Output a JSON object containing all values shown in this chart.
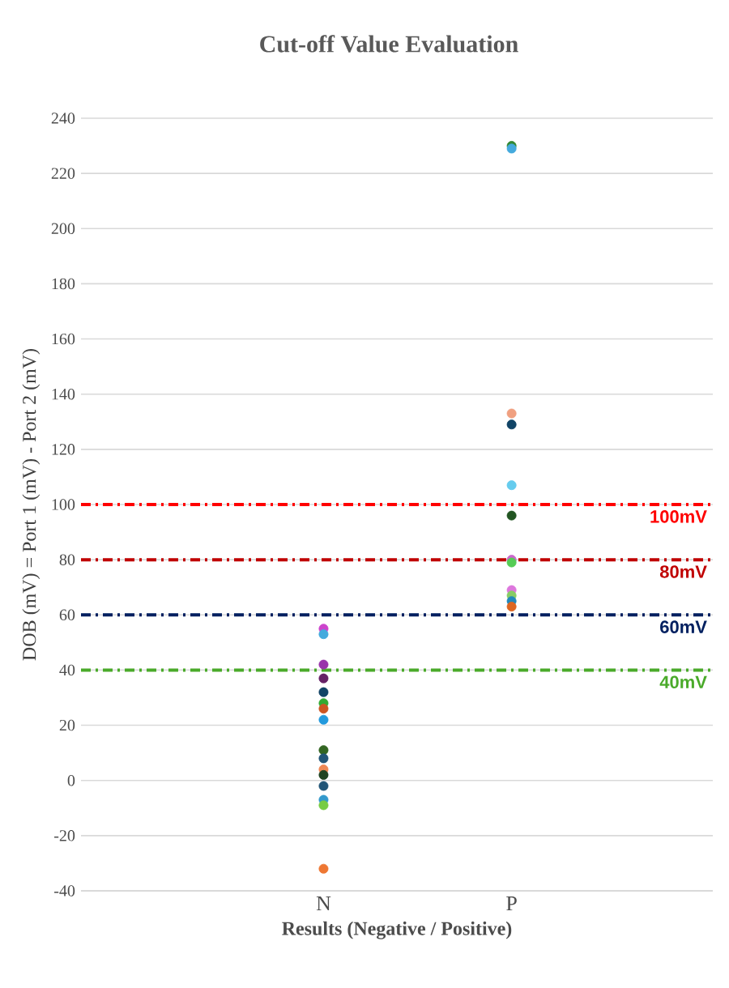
{
  "chart_data": {
    "type": "scatter",
    "title": "Cut-off Value Evaluation",
    "xlabel": "Results (Negative / Positive)",
    "ylabel": "DOB (mV) = Port 1 (mV) - Port 2 (mV)",
    "categories": [
      "N",
      "P"
    ],
    "series": [
      {
        "x": [
          "N",
          "N",
          "N",
          "N",
          "N",
          "N",
          "N",
          "N",
          "N",
          "N",
          "N",
          "N",
          "N",
          "N",
          "N",
          "N",
          "P",
          "P",
          "P",
          "P",
          "P",
          "P",
          "P",
          "P",
          "P",
          "P",
          "P",
          "P"
        ],
        "values": [
          55,
          53,
          42,
          37,
          32,
          28,
          26,
          22,
          11,
          8,
          4,
          2,
          -2,
          -7,
          -9,
          -32,
          230,
          229,
          133,
          129,
          107,
          96,
          80,
          79,
          69,
          67,
          65,
          63
        ],
        "colors": [
          "#cc44cc",
          "#44aadd",
          "#9933aa",
          "#662266",
          "#114466",
          "#33aa33",
          "#cc5522",
          "#2299dd",
          "#336622",
          "#225577",
          "#ee8855",
          "#224422",
          "#225577",
          "#3399cc",
          "#77cc44",
          "#ee7733",
          "#338833",
          "#44aadd",
          "#f0a080",
          "#114466",
          "#66ccee",
          "#225522",
          "#cc66cc",
          "#55cc55",
          "#dd77dd",
          "#88cc66",
          "#2288bb",
          "#dd6622"
        ]
      }
    ],
    "ylim": [
      -40,
      240
    ],
    "yticks": [
      -40,
      -20,
      0,
      20,
      40,
      60,
      80,
      100,
      120,
      140,
      160,
      180,
      200,
      220,
      240
    ],
    "grid": "y",
    "marker": "circle",
    "ref_lines": [
      {
        "axis": "y",
        "value": 100,
        "label": "100mV",
        "color": "#ff0000",
        "line_style": "dashdot"
      },
      {
        "axis": "y",
        "value": 80,
        "label": "80mV",
        "color": "#c00000",
        "line_style": "dashdot"
      },
      {
        "axis": "y",
        "value": 60,
        "label": "60mV",
        "color": "#002060",
        "line_style": "dashdot"
      },
      {
        "axis": "y",
        "value": 40,
        "label": "40mV",
        "color": "#4aaa2a",
        "line_style": "dashdot"
      }
    ]
  }
}
